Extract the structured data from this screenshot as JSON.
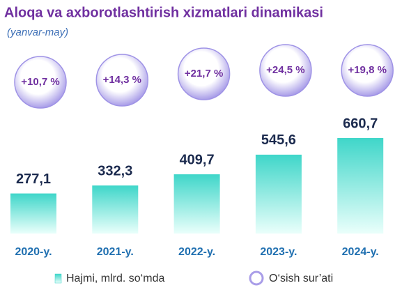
{
  "chart_data": {
    "type": "bar",
    "title": "Aloqa va axborotlashtirish xizmatlari dinamikasi",
    "subtitle": "(yanvar-may)",
    "categories": [
      "2020-y.",
      "2021-y.",
      "2022-y.",
      "2023-y.",
      "2024-y."
    ],
    "series": [
      {
        "name": "Hajmi, mlrd. so‘mda",
        "color": "#3fd6c9",
        "values": [
          277.1,
          332.3,
          409.7,
          545.6,
          660.7
        ],
        "value_labels": [
          "277,1",
          "332,3",
          "409,7",
          "545,6",
          "660,7"
        ]
      },
      {
        "name": "O‘sish sur’ati",
        "color": "#a99de8",
        "values": [
          10.7,
          14.3,
          21.7,
          24.5,
          19.8
        ],
        "value_labels": [
          "+10,7 %",
          "+14,3 %",
          "+21,7 %",
          "+24,5 %",
          "+19,8 %"
        ]
      }
    ]
  }
}
